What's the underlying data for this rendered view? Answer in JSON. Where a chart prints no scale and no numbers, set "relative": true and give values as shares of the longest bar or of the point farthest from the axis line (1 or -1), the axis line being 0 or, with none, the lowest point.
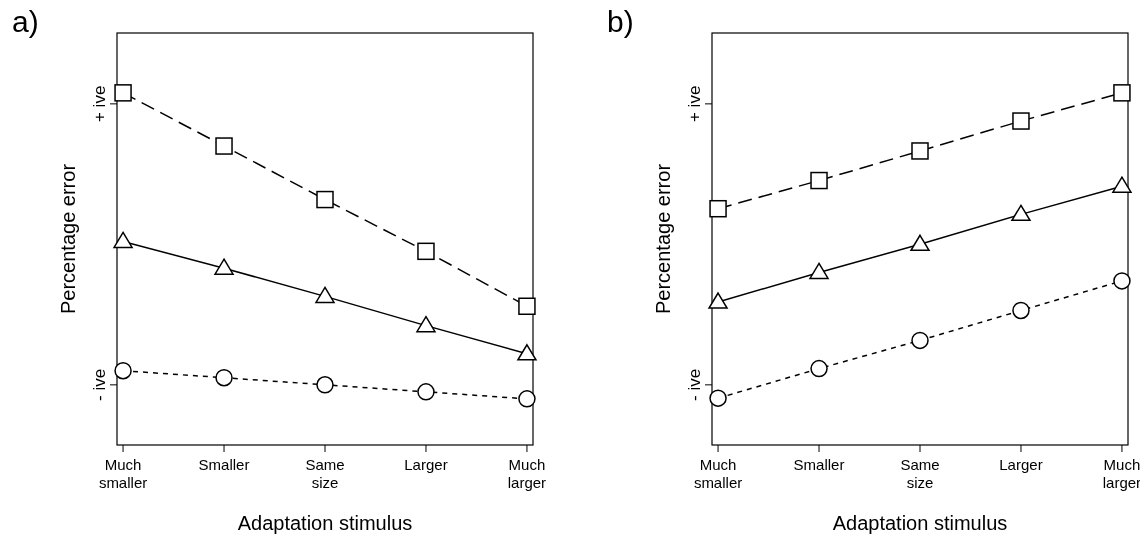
{
  "chart_data": [
    {
      "type": "line",
      "title": "a)",
      "xlabel": "Adaptation stimulus",
      "ylabel": "Percentage error",
      "categories": [
        "Much smaller",
        "Smaller",
        "Same size",
        "Larger",
        "Much larger"
      ],
      "relative": true,
      "annotations": [
        "- ive",
        "+ ive"
      ],
      "series": [
        {
          "color": "#000000",
          "marker": "square",
          "line_style": "dashed",
          "values": [
            1.0,
            0.849,
            0.697,
            0.55,
            0.394
          ]
        },
        {
          "color": "#000000",
          "marker": "triangle",
          "line_style": "solid",
          "values": [
            0.578,
            0.502,
            0.422,
            0.339,
            0.259
          ]
        },
        {
          "color": "#000000",
          "marker": "circle",
          "line_style": "dotted",
          "values": [
            0.211,
            0.191,
            0.171,
            0.151,
            0.131
          ]
        }
      ]
    },
    {
      "type": "line",
      "title": "b)",
      "xlabel": "Adaptation stimulus",
      "ylabel": "Percentage error",
      "categories": [
        "Much smaller",
        "Smaller",
        "Same size",
        "Larger",
        "Much larger"
      ],
      "relative": true,
      "annotations": [
        "- ive",
        "+ ive"
      ],
      "series": [
        {
          "color": "#000000",
          "marker": "square",
          "line_style": "dashed",
          "values": [
            0.671,
            0.751,
            0.835,
            0.92,
            1.0
          ]
        },
        {
          "color": "#000000",
          "marker": "triangle",
          "line_style": "solid",
          "values": [
            0.406,
            0.49,
            0.57,
            0.655,
            0.735
          ]
        },
        {
          "color": "#000000",
          "marker": "circle",
          "line_style": "dotted",
          "values": [
            0.133,
            0.217,
            0.297,
            0.382,
            0.466
          ]
        }
      ]
    }
  ]
}
